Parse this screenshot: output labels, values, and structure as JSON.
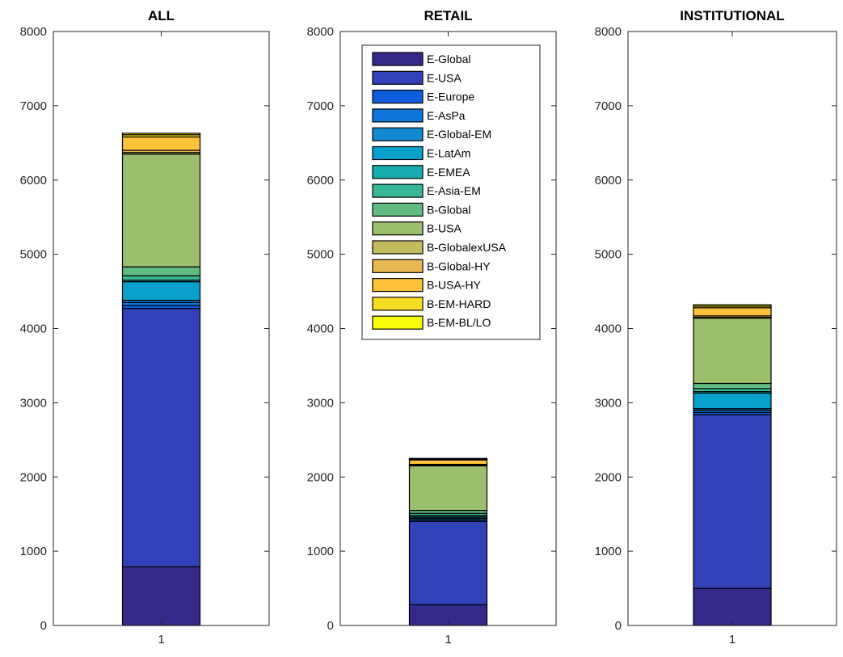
{
  "chart_data": [
    {
      "type": "bar",
      "stacked": true,
      "title": "ALL",
      "categories": [
        "1"
      ],
      "ylim": [
        0,
        8000
      ],
      "yticks": [
        0,
        1000,
        2000,
        3000,
        4000,
        5000,
        6000,
        7000,
        8000
      ],
      "grid": false,
      "series": [
        {
          "name": "E-Global",
          "values": [
            790
          ]
        },
        {
          "name": "E-USA",
          "values": [
            3480
          ]
        },
        {
          "name": "E-Europe",
          "values": [
            40
          ]
        },
        {
          "name": "E-AsPa",
          "values": [
            40
          ]
        },
        {
          "name": "E-Global-EM",
          "values": [
            30
          ]
        },
        {
          "name": "E-LatAm",
          "values": [
            250
          ]
        },
        {
          "name": "E-EMEA",
          "values": [
            20
          ]
        },
        {
          "name": "E-Asia-EM",
          "values": [
            60
          ]
        },
        {
          "name": "B-Global",
          "values": [
            120
          ]
        },
        {
          "name": "B-USA",
          "values": [
            1520
          ]
        },
        {
          "name": "B-GlobalexUSA",
          "values": [
            20
          ]
        },
        {
          "name": "B-Global-HY",
          "values": [
            30
          ]
        },
        {
          "name": "B-USA-HY",
          "values": [
            180
          ]
        },
        {
          "name": "B-EM-HARD",
          "values": [
            30
          ]
        },
        {
          "name": "B-EM-BL/LO",
          "values": [
            20
          ]
        }
      ]
    },
    {
      "type": "bar",
      "stacked": true,
      "title": "RETAIL",
      "categories": [
        "1"
      ],
      "ylim": [
        0,
        8000
      ],
      "yticks": [
        0,
        1000,
        2000,
        3000,
        4000,
        5000,
        6000,
        7000,
        8000
      ],
      "grid": false,
      "legend_location": "top",
      "series": [
        {
          "name": "E-Global",
          "values": [
            280
          ]
        },
        {
          "name": "E-USA",
          "values": [
            1120
          ]
        },
        {
          "name": "E-Europe",
          "values": [
            20
          ]
        },
        {
          "name": "E-AsPa",
          "values": [
            20
          ]
        },
        {
          "name": "E-Global-EM",
          "values": [
            10
          ]
        },
        {
          "name": "E-LatAm",
          "values": [
            20
          ]
        },
        {
          "name": "E-EMEA",
          "values": [
            10
          ]
        },
        {
          "name": "E-Asia-EM",
          "values": [
            30
          ]
        },
        {
          "name": "B-Global",
          "values": [
            40
          ]
        },
        {
          "name": "B-USA",
          "values": [
            600
          ]
        },
        {
          "name": "B-GlobalexUSA",
          "values": [
            10
          ]
        },
        {
          "name": "B-Global-HY",
          "values": [
            10
          ]
        },
        {
          "name": "B-USA-HY",
          "values": [
            60
          ]
        },
        {
          "name": "B-EM-HARD",
          "values": [
            10
          ]
        },
        {
          "name": "B-EM-BL/LO",
          "values": [
            10
          ]
        }
      ]
    },
    {
      "type": "bar",
      "stacked": true,
      "title": "INSTITUTIONAL",
      "categories": [
        "1"
      ],
      "ylim": [
        0,
        8000
      ],
      "yticks": [
        0,
        1000,
        2000,
        3000,
        4000,
        5000,
        6000,
        7000,
        8000
      ],
      "grid": false,
      "series": [
        {
          "name": "E-Global",
          "values": [
            500
          ]
        },
        {
          "name": "E-USA",
          "values": [
            2340
          ]
        },
        {
          "name": "E-Europe",
          "values": [
            30
          ]
        },
        {
          "name": "E-AsPa",
          "values": [
            30
          ]
        },
        {
          "name": "E-Global-EM",
          "values": [
            20
          ]
        },
        {
          "name": "E-LatAm",
          "values": [
            210
          ]
        },
        {
          "name": "E-EMEA",
          "values": [
            20
          ]
        },
        {
          "name": "E-Asia-EM",
          "values": [
            40
          ]
        },
        {
          "name": "B-Global",
          "values": [
            70
          ]
        },
        {
          "name": "B-USA",
          "values": [
            880
          ]
        },
        {
          "name": "B-GlobalexUSA",
          "values": [
            10
          ]
        },
        {
          "name": "B-Global-HY",
          "values": [
            20
          ]
        },
        {
          "name": "B-USA-HY",
          "values": [
            110
          ]
        },
        {
          "name": "B-EM-HARD",
          "values": [
            20
          ]
        },
        {
          "name": "B-EM-BL/LO",
          "values": [
            20
          ]
        }
      ]
    }
  ],
  "colors": [
    "#352a87",
    "#3142b8",
    "#0f5cdd",
    "#0f76dc",
    "#1389d2",
    "#0aa0cc",
    "#17adb0",
    "#38b896",
    "#62bb80",
    "#9cbf6d",
    "#c2bc5f",
    "#e6b84f",
    "#fcc23a",
    "#f6dd22",
    "#f9fb0e"
  ]
}
